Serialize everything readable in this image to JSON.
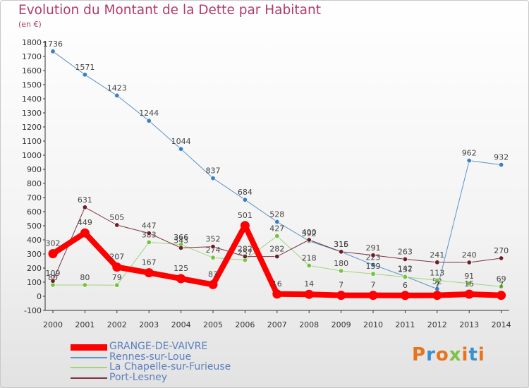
{
  "title": "Evolution du Montant de la Dette par Habitant",
  "subtitle": "(en €)",
  "logo": {
    "text": "Proxiti",
    "colors": [
      "#e8731c",
      "#3a8fd0",
      "#e8731c",
      "#7cc243",
      "#e8731c",
      "#3a8fd0",
      "#e8731c"
    ]
  },
  "chart_data": {
    "type": "line",
    "x": [
      "2000",
      "2001",
      "2002",
      "2003",
      "2004",
      "2005",
      "2006",
      "2007",
      "2008",
      "2009",
      "2010",
      "2011",
      "2012",
      "2013",
      "2014"
    ],
    "ylim": [
      -100,
      1800
    ],
    "yticks": [
      -100,
      0,
      100,
      200,
      300,
      400,
      500,
      600,
      700,
      800,
      900,
      1000,
      1100,
      1200,
      1300,
      1400,
      1500,
      1600,
      1700,
      1800
    ],
    "grid": false,
    "legend_position": "bottom-left",
    "series": [
      {
        "name": "Rennes-sur-Loue",
        "color": "#5b94c9",
        "marker": "#3a7fc4",
        "width": 1,
        "values": [
          1736,
          1571,
          1423,
          1244,
          1044,
          837,
          684,
          528,
          392,
          315,
          223,
          142,
          52,
          962,
          932
        ],
        "labels": [
          "1736",
          "1571",
          "1423",
          "1244",
          "1044",
          "837",
          "684",
          "528",
          "392",
          "315",
          "223",
          "142",
          "52",
          "962",
          "932"
        ]
      },
      {
        "name": "La Chapelle-sur-Furieuse",
        "color": "#9fd67a",
        "marker": "#72c43c",
        "width": 1,
        "values": [
          80,
          80,
          79,
          383,
          366,
          274,
          257,
          427,
          218,
          180,
          159,
          137,
          113,
          91,
          69
        ],
        "labels": [
          "80",
          "80",
          "79",
          "383",
          "366",
          "274",
          "257",
          "427",
          "218",
          "180",
          "159",
          "137",
          "113",
          "91",
          "69"
        ]
      },
      {
        "name": "Port-Lesney",
        "color": "#7a3540",
        "marker": "#6a1f2a",
        "width": 1,
        "values": [
          109,
          631,
          505,
          447,
          343,
          352,
          282,
          282,
          400,
          316,
          291,
          263,
          241,
          240,
          270
        ],
        "labels": [
          "109",
          "631",
          "505",
          "447",
          "343",
          "352",
          "282",
          "282",
          "400",
          "316",
          "291",
          "263",
          "241",
          "240",
          "270"
        ]
      },
      {
        "name": "GRANGE-DE-VAIVRE",
        "color": "#ff0000",
        "marker": "#ff0000",
        "width": 8,
        "values": [
          302,
          449,
          207,
          167,
          125,
          83,
          501,
          16,
          14,
          7,
          7,
          6,
          7,
          15,
          7
        ],
        "labels": [
          "302",
          "449",
          "207",
          "167",
          "125",
          "83",
          "501",
          "16",
          "14",
          "7",
          "7",
          "6",
          "7",
          "15",
          "7"
        ]
      }
    ],
    "legend": [
      {
        "name": "GRANGE-DE-VAIVRE",
        "color": "#ff0000",
        "thick": true
      },
      {
        "name": "Rennes-sur-Loue",
        "color": "#5b94c9",
        "thick": false
      },
      {
        "name": "La Chapelle-sur-Furieuse",
        "color": "#9fd67a",
        "thick": false
      },
      {
        "name": "Port-Lesney",
        "color": "#7a3540",
        "thick": false
      }
    ]
  }
}
